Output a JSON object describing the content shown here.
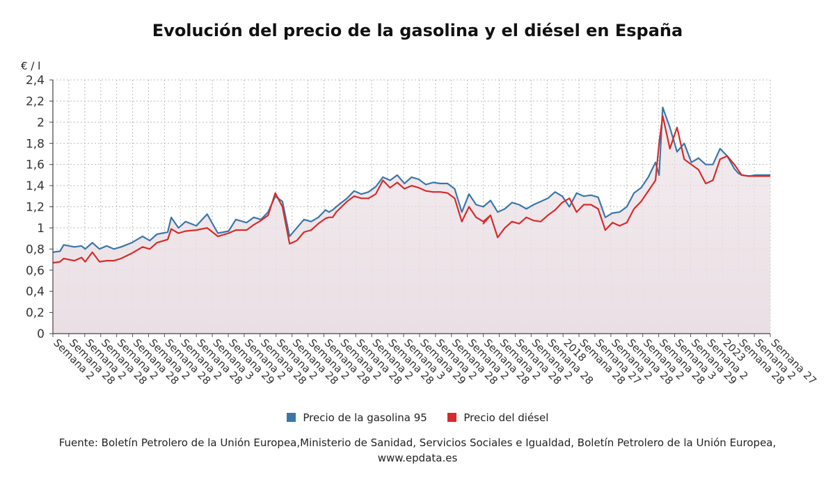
{
  "title": "Evolución del precio de la gasolina y el diésel en España",
  "y_unit": "€ / l",
  "source": "Fuente: Boletín Petrolero de la Unión Europea,Ministerio de Sanidad, Servicios Sociales e Igualdad, Boletín Petrolero de la Unión Europea, www.epdata.es",
  "colors": {
    "gasolina": "#3a77a8",
    "diesel": "#d62b2b",
    "area": "#eadfe4"
  },
  "chart_data": {
    "type": "line",
    "title": "Evolución del precio de la gasolina y el diésel en España",
    "ylabel": "€ / l",
    "xlabel": "",
    "ylim": [
      0,
      2.4
    ],
    "y_ticks": [
      "0",
      "0,2",
      "0,4",
      "0,6",
      "0,8",
      "1",
      "1,2",
      "1,4",
      "1,6",
      "1,8",
      "2",
      "2,2",
      "2,4"
    ],
    "y_tick_values": [
      0,
      0.2,
      0.4,
      0.6,
      0.8,
      1,
      1.2,
      1.4,
      1.6,
      1.8,
      2,
      2.2,
      2.4
    ],
    "grid": true,
    "legend": "bottom",
    "x_tick_labels": [
      "Semana 2",
      "Semana 28",
      "Semana 2",
      "Semana 28",
      "Semana 2",
      "Semana 28",
      "Semana 2",
      "Semana 28",
      "Semana 2",
      "Semana 28",
      "Semana 3",
      "Semana 29",
      "Semana 2",
      "Semana 28",
      "Semana 2",
      "Semana 28",
      "Semana 2",
      "Semana 28",
      "Semana 2",
      "Semana 28",
      "Semana 2",
      "Semana 28",
      "Semana 3",
      "Semana 29",
      "Semana 2",
      "Semana 28",
      "Semana 2",
      "Semana 28",
      "Semana 2",
      "Semana 28",
      "Semana 2",
      "Semana 28",
      "2018",
      "Semana 28",
      "Semana 27",
      "Semana 2",
      "Semana 28",
      "Semana 2",
      "Semana 28",
      "Semana 3",
      "Semana 29",
      "Semana 2",
      "2023",
      "Semana 28",
      "Semana 2",
      "Semana 27"
    ],
    "x_range": [
      0,
      1
    ],
    "series": [
      {
        "name": "Precio de la gasolina 95",
        "color": "#3a77a8",
        "x": [
          0,
          0.01,
          0.015,
          0.03,
          0.04,
          0.045,
          0.055,
          0.065,
          0.075,
          0.085,
          0.095,
          0.11,
          0.125,
          0.135,
          0.145,
          0.16,
          0.165,
          0.175,
          0.185,
          0.2,
          0.215,
          0.23,
          0.245,
          0.255,
          0.27,
          0.28,
          0.29,
          0.3,
          0.31,
          0.32,
          0.33,
          0.34,
          0.35,
          0.36,
          0.37,
          0.38,
          0.385,
          0.39,
          0.395,
          0.41,
          0.42,
          0.43,
          0.44,
          0.45,
          0.46,
          0.47,
          0.48,
          0.49,
          0.5,
          0.51,
          0.52,
          0.53,
          0.54,
          0.55,
          0.56,
          0.57,
          0.58,
          0.59,
          0.6,
          0.61,
          0.6,
          0.61,
          0.62,
          0.63,
          0.64,
          0.65,
          0.66,
          0.67,
          0.68,
          0.69,
          0.7,
          0.71,
          0.72,
          0.73,
          0.74,
          0.75,
          0.76,
          0.77,
          0.78,
          0.79,
          0.8,
          0.81,
          0.82,
          0.83,
          0.84,
          0.845,
          0.85,
          0.86,
          0.87,
          0.88,
          0.89,
          0.9,
          0.91,
          0.92,
          0.93,
          0.94,
          0.95,
          0.955,
          0.96,
          0.97,
          0.98,
          0.99,
          1.0
        ],
        "y": [
          0.77,
          0.78,
          0.84,
          0.82,
          0.83,
          0.8,
          0.86,
          0.8,
          0.83,
          0.8,
          0.82,
          0.86,
          0.92,
          0.88,
          0.94,
          0.96,
          1.1,
          1.0,
          1.06,
          1.02,
          1.13,
          0.95,
          0.97,
          1.08,
          1.05,
          1.1,
          1.08,
          1.15,
          1.3,
          1.25,
          0.92,
          1.0,
          1.08,
          1.06,
          1.1,
          1.17,
          1.15,
          1.17,
          1.2,
          1.28,
          1.35,
          1.32,
          1.34,
          1.39,
          1.48,
          1.45,
          1.5,
          1.42,
          1.48,
          1.46,
          1.41,
          1.43,
          1.42,
          1.42,
          1.37,
          1.15,
          1.32,
          1.22,
          1.2,
          1.26,
          1.2,
          1.26,
          1.15,
          1.18,
          1.24,
          1.22,
          1.18,
          1.22,
          1.25,
          1.28,
          1.34,
          1.3,
          1.2,
          1.33,
          1.3,
          1.31,
          1.29,
          1.1,
          1.14,
          1.15,
          1.2,
          1.33,
          1.38,
          1.48,
          1.62,
          1.5,
          2.14,
          1.95,
          1.72,
          1.8,
          1.62,
          1.66,
          1.6,
          1.6,
          1.75,
          1.68,
          1.56,
          1.52,
          1.5,
          1.49,
          1.5,
          1.5,
          1.5
        ]
      },
      {
        "name": "Precio del diésel",
        "color": "#d62b2b",
        "x": [
          0,
          0.01,
          0.015,
          0.03,
          0.04,
          0.045,
          0.055,
          0.065,
          0.075,
          0.085,
          0.095,
          0.11,
          0.125,
          0.135,
          0.145,
          0.16,
          0.165,
          0.175,
          0.185,
          0.2,
          0.215,
          0.23,
          0.245,
          0.255,
          0.27,
          0.28,
          0.29,
          0.3,
          0.31,
          0.32,
          0.33,
          0.34,
          0.35,
          0.36,
          0.37,
          0.38,
          0.385,
          0.39,
          0.395,
          0.41,
          0.42,
          0.43,
          0.44,
          0.45,
          0.46,
          0.47,
          0.48,
          0.49,
          0.5,
          0.51,
          0.52,
          0.53,
          0.54,
          0.55,
          0.56,
          0.57,
          0.58,
          0.59,
          0.6,
          0.61,
          0.6,
          0.61,
          0.62,
          0.63,
          0.64,
          0.65,
          0.66,
          0.67,
          0.68,
          0.69,
          0.7,
          0.71,
          0.72,
          0.73,
          0.74,
          0.75,
          0.76,
          0.77,
          0.78,
          0.79,
          0.8,
          0.81,
          0.82,
          0.83,
          0.84,
          0.845,
          0.85,
          0.86,
          0.87,
          0.88,
          0.89,
          0.9,
          0.91,
          0.92,
          0.93,
          0.94,
          0.95,
          0.955,
          0.96,
          0.97,
          0.98,
          0.99,
          1.0
        ],
        "y": [
          0.67,
          0.68,
          0.71,
          0.69,
          0.72,
          0.68,
          0.77,
          0.68,
          0.69,
          0.69,
          0.71,
          0.76,
          0.82,
          0.8,
          0.86,
          0.89,
          0.99,
          0.95,
          0.97,
          0.98,
          1.0,
          0.92,
          0.95,
          0.98,
          0.98,
          1.03,
          1.07,
          1.12,
          1.33,
          1.2,
          0.85,
          0.88,
          0.96,
          0.98,
          1.04,
          1.09,
          1.1,
          1.1,
          1.15,
          1.25,
          1.3,
          1.28,
          1.28,
          1.32,
          1.45,
          1.38,
          1.43,
          1.37,
          1.4,
          1.38,
          1.35,
          1.34,
          1.34,
          1.33,
          1.28,
          1.06,
          1.2,
          1.1,
          1.06,
          1.12,
          1.04,
          1.12,
          0.91,
          1.0,
          1.06,
          1.04,
          1.1,
          1.07,
          1.06,
          1.12,
          1.17,
          1.24,
          1.28,
          1.15,
          1.22,
          1.22,
          1.18,
          0.98,
          1.05,
          1.02,
          1.05,
          1.18,
          1.25,
          1.35,
          1.45,
          1.8,
          2.06,
          1.75,
          1.95,
          1.65,
          1.6,
          1.55,
          1.42,
          1.45,
          1.65,
          1.68,
          1.6,
          1.55,
          1.5,
          1.49,
          1.49,
          1.49,
          1.49
        ]
      }
    ]
  },
  "legend": [
    {
      "label": "Precio de la gasolina 95",
      "color": "#3a77a8"
    },
    {
      "label": "Precio del diésel",
      "color": "#d62b2b"
    }
  ]
}
